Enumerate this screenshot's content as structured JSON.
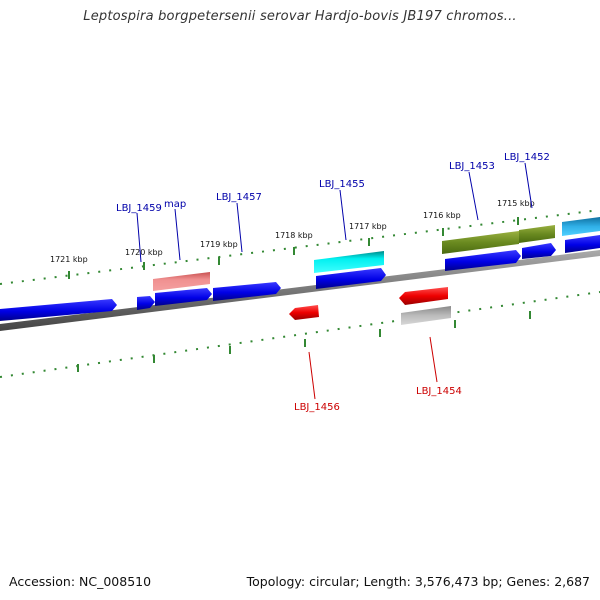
{
  "title": "Leptospira borgpetersenii serovar Hardjo-bovis JB197 chromos...",
  "footer": {
    "accession": "Accession: NC_008510",
    "summary": "Topology: circular; Length: 3,576,473 bp; Genes: 2,687"
  },
  "ticks": [
    "1721 kbp",
    "1720 kbp",
    "1719 kbp",
    "1718 kbp",
    "1717 kbp",
    "1716 kbp",
    "1715 kbp"
  ],
  "gene_labels_top": [
    "LBJ_1459",
    "map",
    "LBJ_1457",
    "LBJ_1455",
    "LBJ_1453",
    "LBJ_1452"
  ],
  "gene_labels_bottom": [
    "LBJ_1456",
    "LBJ_1454"
  ],
  "colors": {
    "forward_gene": "#0000ee",
    "reverse_gene": "#ee0000",
    "label_forward": "#0000aa",
    "label_reverse": "#cc0000",
    "tick": "#338833",
    "backbone": "#777777"
  }
}
